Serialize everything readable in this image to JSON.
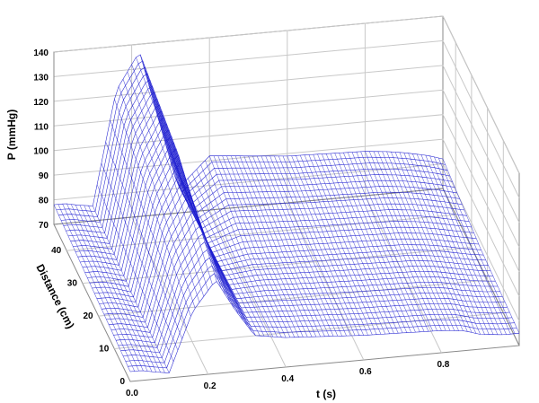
{
  "chart_data": {
    "type": "surface-3d",
    "xlabel": "t (s)",
    "ylabel": "Distance (cm)",
    "zlabel": "P (mmHg)",
    "x_ticks": [
      "0.0",
      "0.2",
      "0.4",
      "0.6",
      "0.8"
    ],
    "y_ticks": [
      "0",
      "10",
      "20",
      "30",
      "40"
    ],
    "z_ticks": [
      "70",
      "80",
      "90",
      "100",
      "110",
      "120",
      "130",
      "140"
    ],
    "xlim": [
      0,
      1.0
    ],
    "ylim": [
      0,
      48
    ],
    "zlim": [
      70,
      140
    ],
    "grid": true,
    "mesh_color": "#1f1fd0",
    "series": [
      {
        "distance": 0,
        "t": [
          0.0,
          0.03,
          0.06,
          0.1,
          0.16,
          0.22,
          0.27,
          0.32,
          0.4,
          0.6,
          0.8,
          0.86,
          0.9,
          0.96,
          1.0
        ],
        "p": [
          74,
          74,
          73,
          72,
          96,
          108,
          95,
          84,
          82,
          80,
          79,
          78,
          76,
          75,
          75
        ]
      },
      {
        "distance": 24,
        "t": [
          0.0,
          0.03,
          0.06,
          0.1,
          0.16,
          0.22,
          0.27,
          0.32,
          0.4,
          0.6,
          0.8,
          0.86,
          0.9,
          0.96,
          1.0
        ],
        "p": [
          76,
          76,
          75,
          73,
          110,
          128,
          100,
          82,
          84,
          83,
          82,
          81,
          80,
          78,
          77
        ]
      },
      {
        "distance": 48,
        "t": [
          0.0,
          0.03,
          0.06,
          0.1,
          0.16,
          0.22,
          0.27,
          0.32,
          0.4,
          0.6,
          0.8,
          0.86,
          0.9,
          0.96,
          1.0
        ],
        "p": [
          78,
          78,
          77,
          76,
          122,
          137,
          108,
          80,
          92,
          89,
          88,
          87,
          86,
          84,
          82
        ]
      }
    ]
  }
}
